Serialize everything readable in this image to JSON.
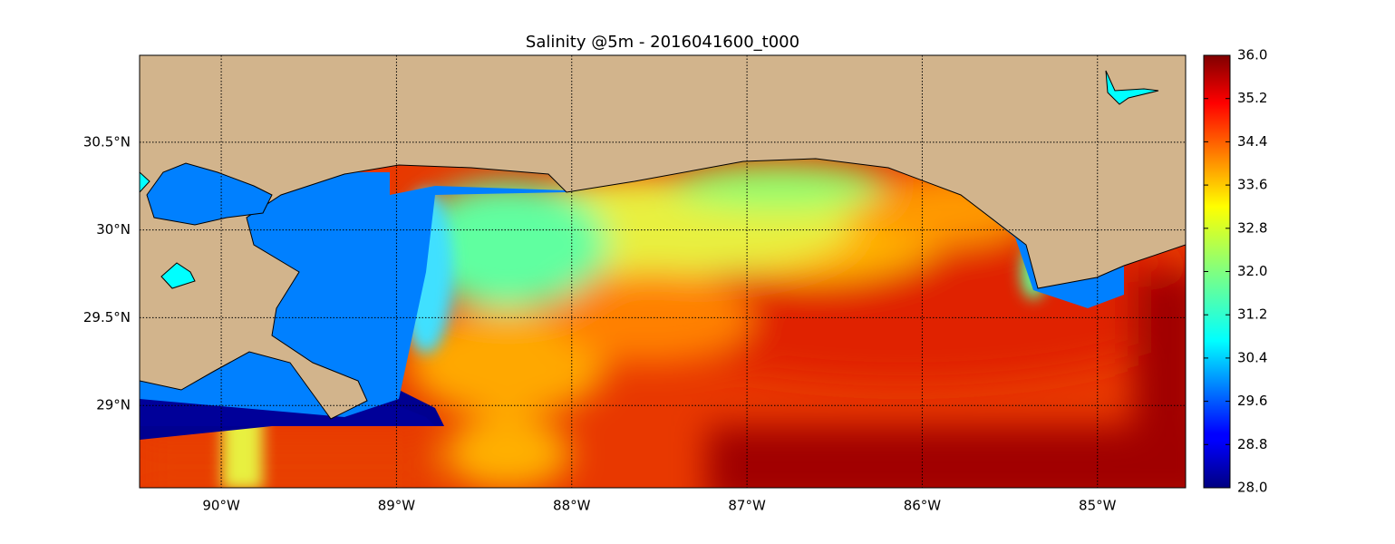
{
  "chart_data": {
    "type": "map",
    "title": "Salinity @5m - 2016041600_t000",
    "xlim": [
      -90.466,
      -84.497
    ],
    "ylim": [
      28.531,
      30.995
    ],
    "xticks": [
      {
        "value": -90,
        "label": "90°W"
      },
      {
        "value": -89,
        "label": "89°W"
      },
      {
        "value": -88,
        "label": "88°W"
      },
      {
        "value": -87,
        "label": "87°W"
      },
      {
        "value": -86,
        "label": "86°W"
      },
      {
        "value": -85,
        "label": "85°W"
      }
    ],
    "yticks": [
      {
        "value": 29,
        "label": "29°N"
      },
      {
        "value": 29.5,
        "label": "29.5°N"
      },
      {
        "value": 30,
        "label": "30°N"
      },
      {
        "value": 30.5,
        "label": "30.5°N"
      }
    ],
    "grid": true,
    "colorbar": {
      "colormap": "jet",
      "lim": [
        28,
        36
      ],
      "ticks": [
        {
          "value": 28,
          "label": "28.0"
        },
        28.8,
        29.6,
        30.4,
        31.2,
        {
          "value": 32,
          "label": "32.0"
        },
        32.8,
        33.6,
        34.4,
        35.2,
        {
          "value": 36,
          "label": "36.0"
        }
      ]
    }
  }
}
